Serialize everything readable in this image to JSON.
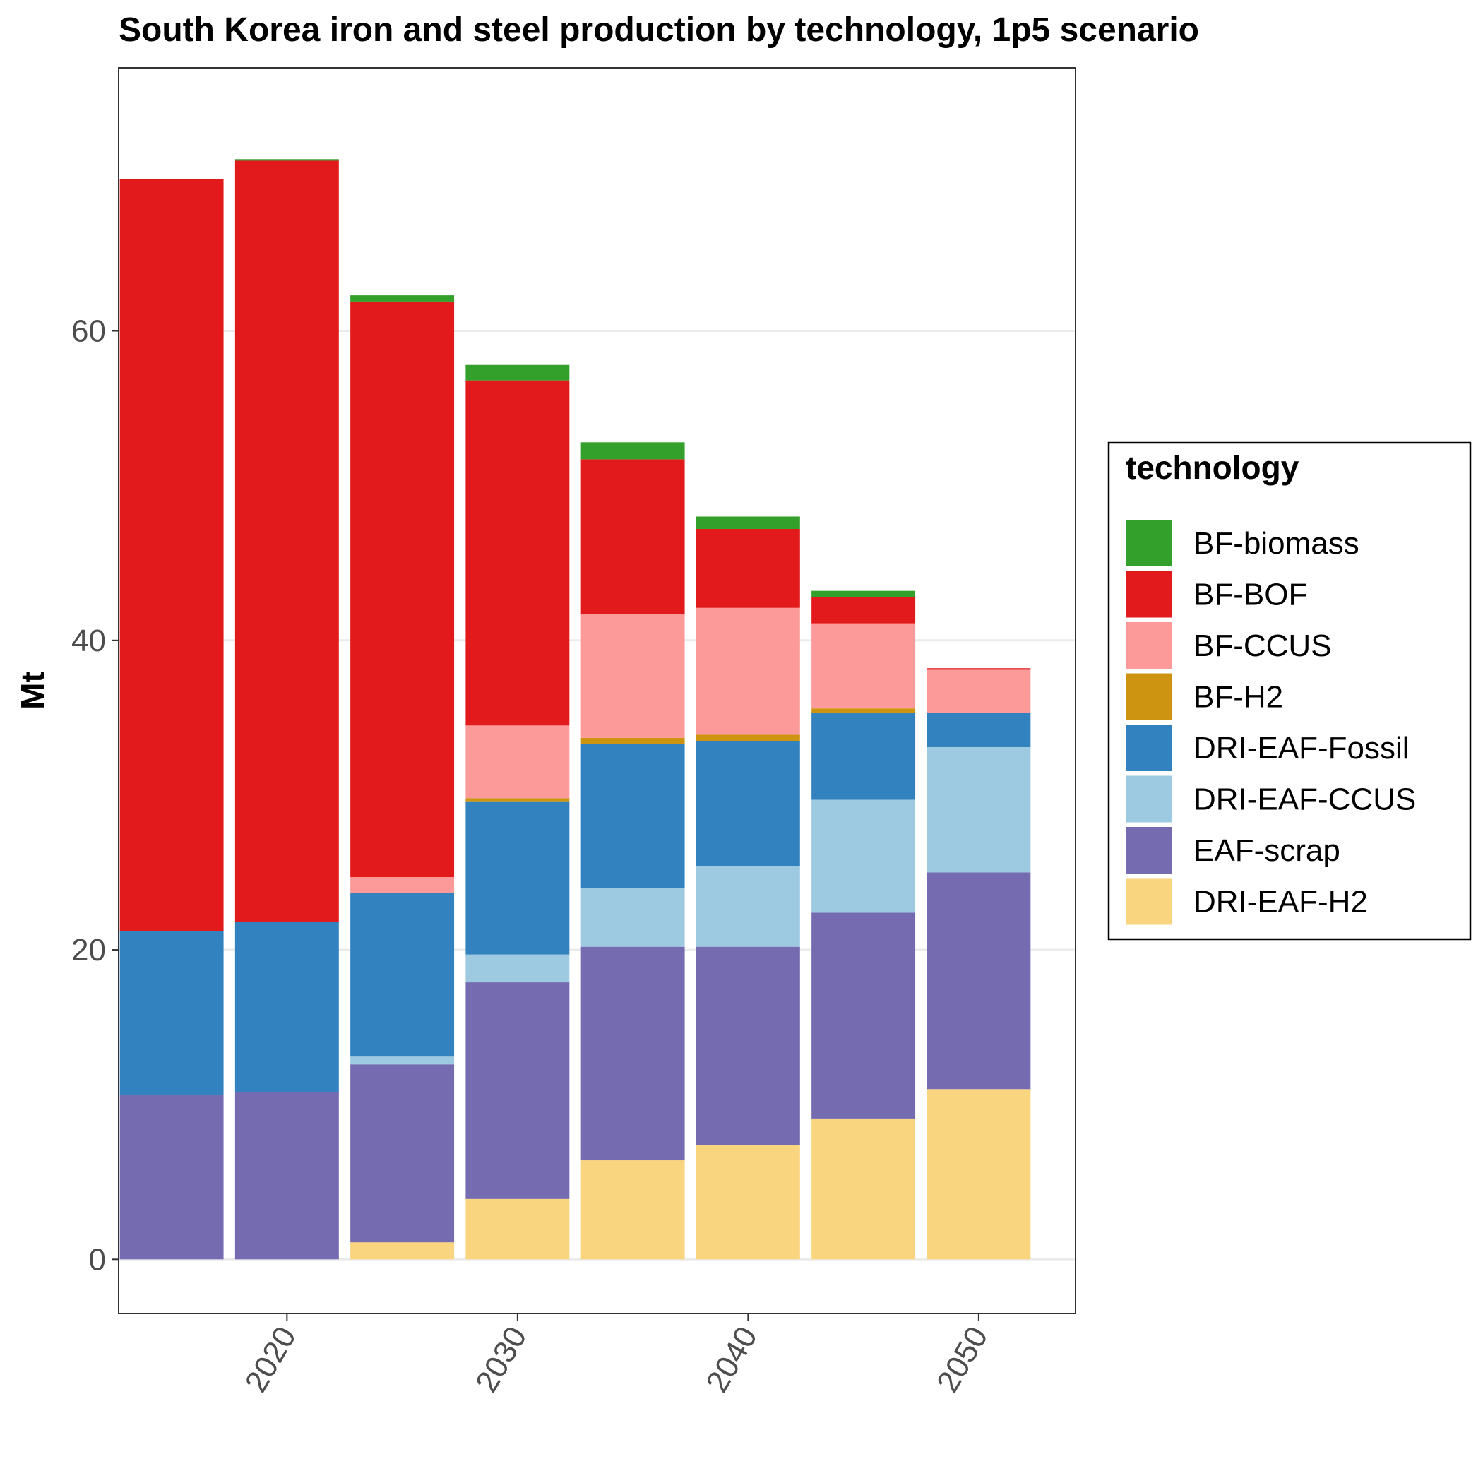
{
  "chart_data": {
    "type": "bar",
    "stacked": true,
    "title": "South Korea iron and steel production by technology, 1p5 scenario",
    "ylabel": "Mt",
    "xlabel": "",
    "xlim": [
      2012.7,
      2054.2
    ],
    "ylim": [
      -3.5,
      77
    ],
    "x_ticks": [
      2020,
      2030,
      2040,
      2050
    ],
    "y_ticks": [
      0,
      20,
      40,
      60
    ],
    "bar_width_years": 4.5,
    "grid": true,
    "legend_title": "technology",
    "legend_position": "right",
    "categories": [
      2015,
      2020,
      2025,
      2030,
      2035,
      2040,
      2045,
      2050
    ],
    "stack_order": [
      "DRI-EAF-H2",
      "EAF-scrap",
      "DRI-EAF-CCUS",
      "DRI-EAF-Fossil",
      "BF-H2",
      "BF-CCUS",
      "BF-BOF",
      "BF-biomass"
    ],
    "series": [
      {
        "name": "BF-biomass",
        "color": "#33a02c",
        "values": [
          0,
          0.1,
          0.4,
          1.0,
          1.1,
          0.8,
          0.4,
          0
        ]
      },
      {
        "name": "BF-BOF",
        "color": "#e31a1c",
        "values": [
          48.6,
          49.2,
          37.2,
          22.3,
          10.0,
          5.1,
          1.7,
          0.1
        ]
      },
      {
        "name": "BF-CCUS",
        "color": "#fb9a99",
        "values": [
          0,
          0,
          1.0,
          4.7,
          8.0,
          8.2,
          5.5,
          2.8
        ]
      },
      {
        "name": "BF-H2",
        "color": "#cc9410",
        "values": [
          0,
          0,
          0,
          0.2,
          0.4,
          0.4,
          0.3,
          0
        ]
      },
      {
        "name": "DRI-EAF-Fossil",
        "color": "#3282bf",
        "values": [
          10.6,
          11.0,
          10.6,
          9.9,
          9.3,
          8.1,
          5.6,
          2.2
        ]
      },
      {
        "name": "DRI-EAF-CCUS",
        "color": "#9ecae1",
        "values": [
          0,
          0,
          0.5,
          1.8,
          3.8,
          5.2,
          7.3,
          8.1
        ]
      },
      {
        "name": "EAF-scrap",
        "color": "#756bb1",
        "values": [
          10.6,
          10.8,
          11.5,
          14.0,
          13.8,
          12.8,
          13.3,
          14.0
        ]
      },
      {
        "name": "DRI-EAF-H2",
        "color": "#f9d57f",
        "values": [
          0,
          0,
          1.1,
          3.9,
          6.4,
          7.4,
          9.1,
          11.0
        ]
      }
    ]
  }
}
